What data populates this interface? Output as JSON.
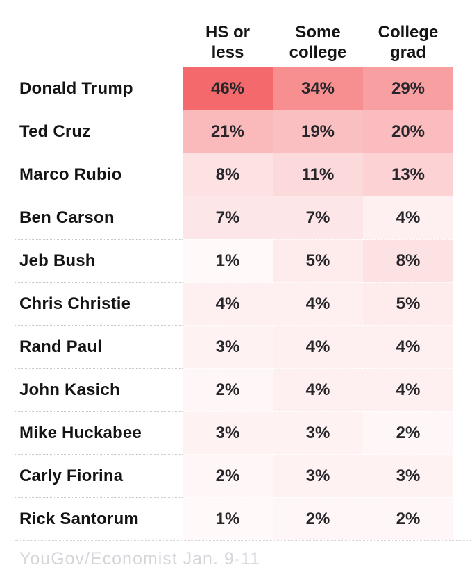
{
  "chart_data": {
    "type": "heatmap",
    "title": "",
    "columns": [
      {
        "label": "HS or less",
        "line1": "HS or",
        "line2": "less"
      },
      {
        "label": "Some college",
        "line1": "Some",
        "line2": "college"
      },
      {
        "label": "College grad",
        "line1": "College",
        "line2": "grad"
      }
    ],
    "rows": [
      {
        "name": "Donald Trump",
        "values": [
          46,
          34,
          29
        ],
        "display": [
          "46%",
          "34%",
          "29%"
        ]
      },
      {
        "name": "Ted Cruz",
        "values": [
          21,
          19,
          20
        ],
        "display": [
          "21%",
          "19%",
          "20%"
        ]
      },
      {
        "name": "Marco Rubio",
        "values": [
          8,
          11,
          13
        ],
        "display": [
          "8%",
          "11%",
          "13%"
        ]
      },
      {
        "name": "Ben Carson",
        "values": [
          7,
          7,
          4
        ],
        "display": [
          "7%",
          "7%",
          "4%"
        ]
      },
      {
        "name": "Jeb Bush",
        "values": [
          1,
          5,
          8
        ],
        "display": [
          "1%",
          "5%",
          "8%"
        ]
      },
      {
        "name": "Chris Christie",
        "values": [
          4,
          4,
          5
        ],
        "display": [
          "4%",
          "4%",
          "5%"
        ]
      },
      {
        "name": "Rand Paul",
        "values": [
          3,
          4,
          4
        ],
        "display": [
          "3%",
          "4%",
          "4%"
        ]
      },
      {
        "name": "John Kasich",
        "values": [
          2,
          4,
          4
        ],
        "display": [
          "2%",
          "4%",
          "4%"
        ]
      },
      {
        "name": "Mike Huckabee",
        "values": [
          3,
          3,
          2
        ],
        "display": [
          "3%",
          "3%",
          "2%"
        ]
      },
      {
        "name": "Carly Fiorina",
        "values": [
          2,
          3,
          3
        ],
        "display": [
          "2%",
          "3%",
          "3%"
        ]
      },
      {
        "name": "Rick Santorum",
        "values": [
          1,
          2,
          2
        ],
        "display": [
          "1%",
          "2%",
          "2%"
        ]
      }
    ],
    "value_suffix": "%",
    "color_scale": {
      "min_value": 0,
      "max_value": 46,
      "min_color": "#fffcfd",
      "max_color": "#f4696b"
    },
    "source": "YouGov/Economist Jan. 9-11",
    "colors": {
      "name_text": "#141414",
      "value_text": "#26262b",
      "source_text": "#d4d6da",
      "separator": "#c9c9c9"
    },
    "layout_hints": {
      "legend": "none",
      "grid": "dotted-row-separators"
    }
  }
}
